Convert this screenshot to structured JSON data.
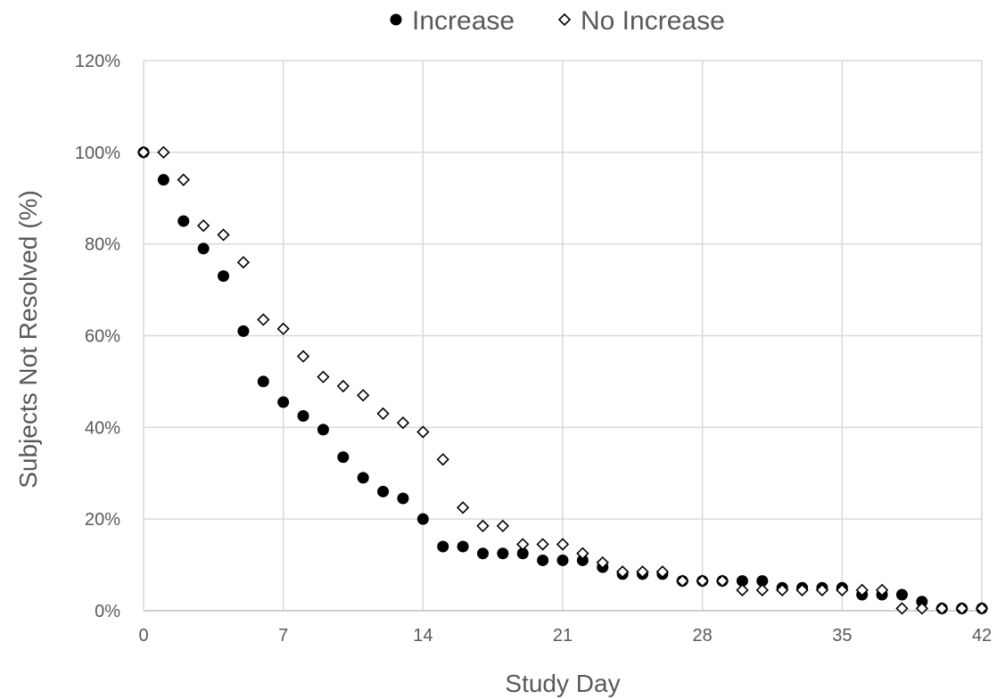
{
  "chart_data": {
    "type": "scatter",
    "title": "",
    "xlabel": "Study Day",
    "ylabel": "Subjects Not Resolved (%)",
    "xlim": [
      0,
      42
    ],
    "ylim": [
      0,
      120
    ],
    "xticks": [
      0,
      7,
      14,
      21,
      28,
      35,
      42
    ],
    "yticks": [
      0,
      20,
      40,
      60,
      80,
      100,
      120
    ],
    "xtick_labels": [
      "0",
      "7",
      "14",
      "21",
      "28",
      "35",
      "42"
    ],
    "ytick_labels": [
      "0%",
      "20%",
      "40%",
      "60%",
      "80%",
      "100%",
      "120%"
    ],
    "grid": true,
    "legend_position": "top-center",
    "series": [
      {
        "name": "Increase",
        "marker": "filled-circle",
        "color": "#000000",
        "x": [
          0,
          1,
          2,
          3,
          4,
          5,
          6,
          7,
          8,
          9,
          10,
          11,
          12,
          13,
          14,
          15,
          16,
          17,
          18,
          19,
          20,
          21,
          22,
          23,
          24,
          25,
          26,
          27,
          28,
          29,
          30,
          31,
          32,
          33,
          34,
          35,
          36,
          37,
          38,
          39,
          40,
          41,
          42
        ],
        "y": [
          100,
          94,
          85,
          79,
          73,
          61,
          50,
          45.5,
          42.5,
          39.5,
          33.5,
          29,
          26,
          24.5,
          20,
          14,
          14,
          12.5,
          12.5,
          12.5,
          11,
          11,
          11,
          9.5,
          8,
          8,
          8,
          6.5,
          6.5,
          6.5,
          6.5,
          6.5,
          5,
          5,
          5,
          5,
          3.5,
          3.5,
          3.5,
          2,
          0.5,
          0.5,
          0.5
        ]
      },
      {
        "name": "No Increase",
        "marker": "open-diamond",
        "color": "#000000",
        "x": [
          0,
          1,
          2,
          3,
          4,
          5,
          6,
          7,
          8,
          9,
          10,
          11,
          12,
          13,
          14,
          15,
          16,
          17,
          18,
          19,
          20,
          21,
          22,
          23,
          24,
          25,
          26,
          27,
          28,
          29,
          30,
          31,
          32,
          33,
          34,
          35,
          36,
          37,
          38,
          39,
          40,
          41,
          42
        ],
        "y": [
          100,
          100,
          94,
          84,
          82,
          76,
          63.5,
          61.5,
          55.5,
          51,
          49,
          47,
          43,
          41,
          39,
          33,
          22.5,
          18.5,
          18.5,
          14.5,
          14.5,
          14.5,
          12.5,
          10.5,
          8.5,
          8.5,
          8.5,
          6.5,
          6.5,
          6.5,
          4.5,
          4.5,
          4.5,
          4.5,
          4.5,
          4.5,
          4.5,
          4.5,
          0.5,
          0.5,
          0.5,
          0.5,
          0.5
        ]
      }
    ]
  }
}
